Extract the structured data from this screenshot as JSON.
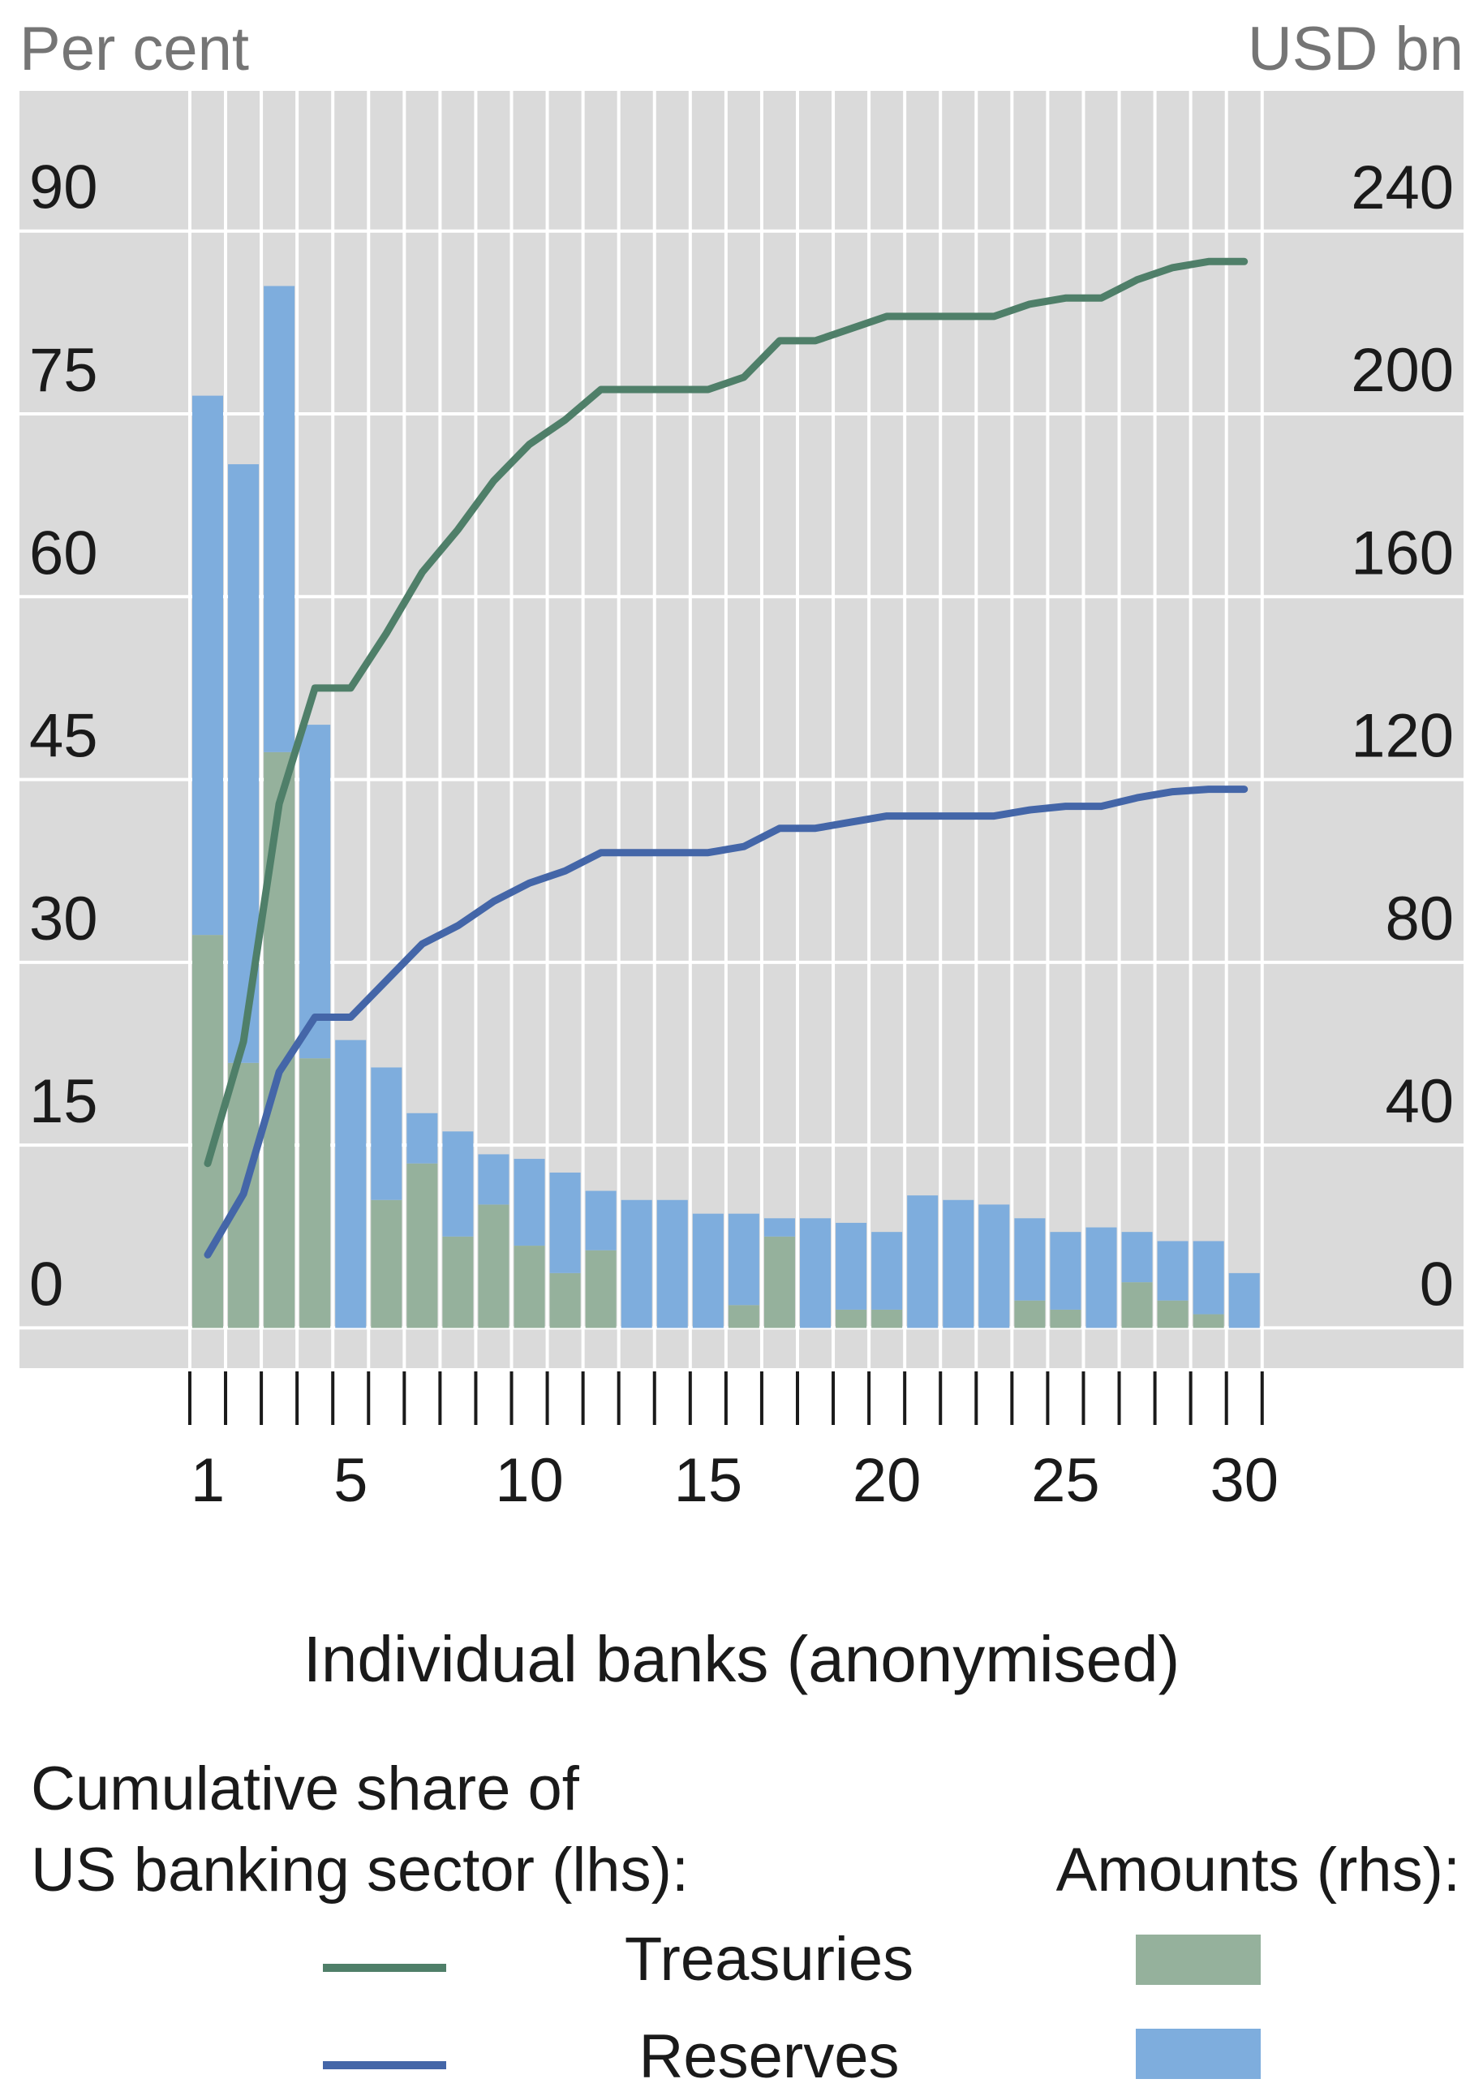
{
  "colors": {
    "plot_bg": "#dadada",
    "grid": "#ffffff",
    "treasuries_line": "#4f7f69",
    "reserves_line": "#4466a8",
    "treasuries_bar": "#95b19c",
    "reserves_bar": "#7eaddd",
    "axis_title": "#757575"
  },
  "chart_data": {
    "type": "bar",
    "left_axis_title": "Per cent",
    "right_axis_title": "USD bn",
    "xlabel": "Individual banks (anonymised)",
    "x_ticks": [
      1,
      5,
      10,
      15,
      20,
      25,
      30
    ],
    "y_left": {
      "ticks": [
        0,
        15,
        30,
        45,
        60,
        75,
        90
      ],
      "lim": [
        -3.3,
        101.5
      ]
    },
    "y_right": {
      "ticks": [
        0,
        40,
        80,
        120,
        160,
        200,
        240
      ],
      "lim": [
        -8.8,
        270.7
      ]
    },
    "grid": true,
    "legend": {
      "line_group_title_1": "Cumulative share of",
      "line_group_title_2": "US banking sector (lhs):",
      "bar_group_title": "Amounts (rhs):",
      "treasuries": "Treasuries",
      "reserves": "Reserves"
    },
    "banks": [
      1,
      2,
      3,
      4,
      5,
      6,
      7,
      8,
      9,
      10,
      11,
      12,
      13,
      14,
      15,
      16,
      17,
      18,
      19,
      20,
      21,
      22,
      23,
      24,
      25,
      26,
      27,
      28,
      29,
      30
    ],
    "bar_series": [
      {
        "name": "Treasuries",
        "axis": "rhs",
        "values": [
          86,
          58,
          126,
          59,
          0,
          28,
          36,
          20,
          27,
          18,
          12,
          17,
          0,
          0,
          0,
          5,
          20,
          0,
          4,
          4,
          0,
          0,
          0,
          6,
          4,
          0,
          10,
          6,
          3,
          0
        ]
      },
      {
        "name": "Reserves",
        "axis": "rhs",
        "values": [
          118,
          131,
          102,
          73,
          63,
          29,
          11,
          23,
          11,
          19,
          22,
          13,
          28,
          28,
          25,
          20,
          4,
          24,
          19,
          17,
          29,
          28,
          27,
          18,
          17,
          22,
          11,
          13,
          16,
          12
        ]
      }
    ],
    "line_series": [
      {
        "name": "Treasuries",
        "axis": "lhs",
        "values": [
          13.5,
          23.5,
          43.0,
          52.5,
          52.5,
          57.0,
          62.0,
          65.5,
          69.5,
          72.5,
          74.5,
          77.0,
          77.0,
          77.0,
          77.0,
          78.0,
          81.0,
          81.0,
          82.0,
          83.0,
          83.0,
          83.0,
          83.0,
          84.0,
          84.5,
          84.5,
          86.0,
          87.0,
          87.5,
          87.5
        ]
      },
      {
        "name": "Reserves",
        "axis": "lhs",
        "values": [
          6.0,
          11.0,
          21.0,
          25.5,
          25.5,
          28.5,
          31.5,
          33.0,
          35.0,
          36.5,
          37.5,
          39.0,
          39.0,
          39.0,
          39.0,
          39.5,
          41.0,
          41.0,
          41.5,
          42.0,
          42.0,
          42.0,
          42.0,
          42.5,
          42.8,
          42.8,
          43.5,
          44.0,
          44.2,
          44.2
        ]
      }
    ]
  }
}
